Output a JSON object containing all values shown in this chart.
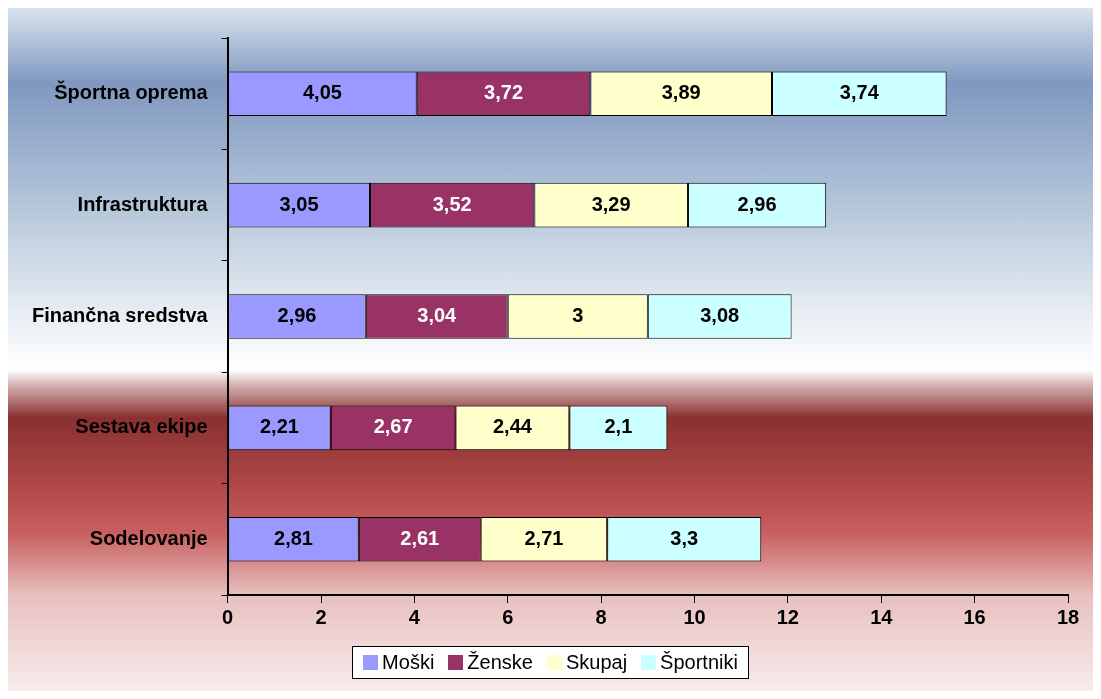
{
  "chart_data": {
    "type": "bar",
    "orientation": "horizontal",
    "stacked": true,
    "categories": [
      "Športna oprema",
      "Infrastruktura",
      "Finančna sredstva",
      "Sestava ekipe",
      "Sodelovanje"
    ],
    "series": [
      {
        "name": "Moški",
        "color": "#9999ff",
        "values": [
          4.05,
          3.05,
          2.96,
          2.21,
          2.81
        ],
        "value_labels": [
          "4,05",
          "3,05",
          "2,96",
          "2,21",
          "2,81"
        ]
      },
      {
        "name": "Ženske",
        "color": "#993366",
        "values": [
          3.72,
          3.52,
          3.04,
          2.67,
          2.61
        ],
        "value_labels": [
          "3,72",
          "3,52",
          "3,04",
          "2,67",
          "2,61"
        ]
      },
      {
        "name": "Skupaj",
        "color": "#ffffcc",
        "values": [
          3.89,
          3.29,
          3,
          2.44,
          2.71
        ],
        "value_labels": [
          "3,89",
          "3,29",
          "3",
          "2,44",
          "2,71"
        ]
      },
      {
        "name": "Športniki",
        "color": "#ccffff",
        "values": [
          3.74,
          2.96,
          3.08,
          2.1,
          3.3
        ],
        "value_labels": [
          "3,74",
          "2,96",
          "3,08",
          "2,1",
          "3,3"
        ]
      }
    ],
    "xlim": [
      0,
      18
    ],
    "xticks": [
      0,
      2,
      4,
      6,
      8,
      10,
      12,
      14,
      16,
      18
    ],
    "grid": false,
    "legend": "bottom"
  }
}
